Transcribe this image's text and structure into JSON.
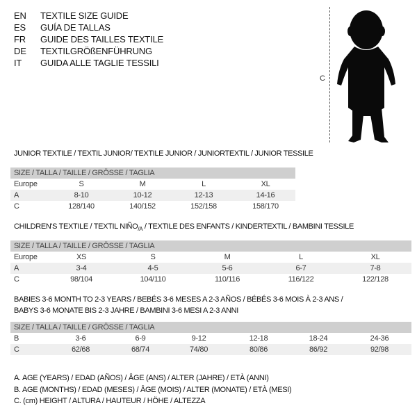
{
  "titles": [
    {
      "code": "EN",
      "text": "TEXTILE SIZE GUIDE"
    },
    {
      "code": "ES",
      "text": "GUÍA DE TALLAS"
    },
    {
      "code": "FR",
      "text": "GUIDE DES TAILLES TEXTILE"
    },
    {
      "code": "DE",
      "text": "TEXTILGRÖßENFÜHRUNG"
    },
    {
      "code": "IT",
      "text": "GUIDA ALLE TAGLIE TESSILI"
    }
  ],
  "figure": {
    "label": "C",
    "icon": "child-silhouette"
  },
  "junior": {
    "title": "JUNIOR TEXTILE / TEXTIL JUNIOR/ TEXTILE JUNIOR / JUNIORTEXTIL / JUNIOR TESSILE",
    "header": "SIZE / TALLA / TAILLE / GRÖSSE / TAGLIA",
    "rows": [
      {
        "label": "Europe",
        "cells": [
          "S",
          "M",
          "L",
          "XL"
        ]
      },
      {
        "label": "A",
        "cells": [
          "8-10",
          "10-12",
          "12-13",
          "14-16"
        ]
      },
      {
        "label": "C",
        "cells": [
          "128/140",
          "140/152",
          "152/158",
          "158/170"
        ]
      }
    ]
  },
  "children": {
    "title_a": "CHILDREN'S TEXTILE / TEXTIL NIÑO",
    "title_sub": "/A",
    "title_b": " / TEXTILE DES ENFANTS / KINDERTEXTIL / BAMBINI TESSILE",
    "header": "SIZE / TALLA / TAILLE / GRÖSSE / TAGLIA",
    "rows": [
      {
        "label": "Europe",
        "cells": [
          "XS",
          "S",
          "M",
          "L",
          "XL"
        ]
      },
      {
        "label": "A",
        "cells": [
          "3-4",
          "4-5",
          "5-6",
          "6-7",
          "7-8"
        ]
      },
      {
        "label": "C",
        "cells": [
          "98/104",
          "104/110",
          "110/116",
          "116/122",
          "122/128"
        ]
      }
    ]
  },
  "babies": {
    "title1": "BABIES 3-6 MONTH TO 2-3 YEARS / BEBÉS 3-6 MESES A 2-3 AÑOS / BÉBÉS 3-6 MOIS À 2-3 ANS /",
    "title2": "BABYS 3-6 MONATE BIS 2-3 JAHRE / BAMBINI 3-6 MESI A 2-3 ANNI",
    "header": "SIZE / TALLA / TAILLE / GRÖSSE / TAGLIA",
    "rows": [
      {
        "label": "B",
        "cells": [
          "3-6",
          "6-9",
          "9-12",
          "12-18",
          "18-24",
          "24-36"
        ]
      },
      {
        "label": "C",
        "cells": [
          "62/68",
          "68/74",
          "74/80",
          "80/86",
          "86/92",
          "92/98"
        ]
      }
    ]
  },
  "legend": [
    "A. AGE (YEARS) / EDAD (AÑOS) / ÂGE (ANS) / ALTER (JAHRE) / ETÀ (ANNI)",
    "B. AGE (MONTHS) / EDAD (MESES) / ÂGE (MOIS) / ALTER (MONATE) / ETÀ (MESI)",
    "C. (cm) HEIGHT / ALTURA / HAUTEUR / HÖHE / ALTEZZA"
  ]
}
